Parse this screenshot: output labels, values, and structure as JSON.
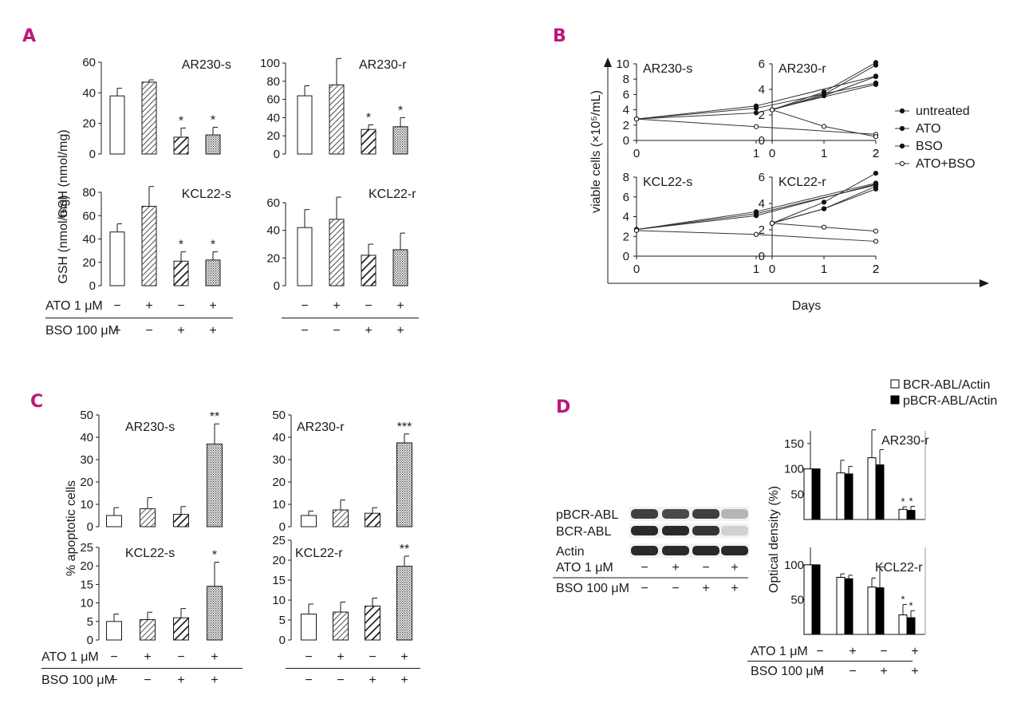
{
  "colors": {
    "accent": "#c0157a",
    "ink": "#1a1a1a"
  },
  "panels": [
    {
      "letter": "A",
      "x": 28,
      "y": 52
    },
    {
      "letter": "B",
      "x": 693,
      "y": 52
    },
    {
      "letter": "C",
      "x": 38,
      "y": 510
    },
    {
      "letter": "D",
      "x": 697,
      "y": 517
    }
  ],
  "treatment_labels": {
    "ato": "ATO 1 μM",
    "bso": "BSO 100 μM"
  },
  "line_xlabel": "Days",
  "chart_data": [
    {
      "id": "A",
      "type": "bar",
      "ylabel": "GSH (nmol/mg)",
      "fills": [
        "white",
        "hatch",
        "hatch-bold",
        "dots"
      ],
      "treatments": {
        "ato": [
          "−",
          "+",
          "−",
          "+"
        ],
        "bso": [
          "−",
          "−",
          "+",
          "+"
        ]
      },
      "subplots": [
        {
          "name": "AR230-s",
          "ylim": [
            0,
            60
          ],
          "yticks": [
            0,
            20,
            40,
            60
          ],
          "values": [
            38,
            47,
            11,
            12.5
          ],
          "errors": [
            5,
            1.5,
            6,
            5
          ],
          "markers": [
            "",
            "",
            "*",
            "*"
          ]
        },
        {
          "name": "AR230-r",
          "ylim": [
            0,
            100
          ],
          "yticks": [
            0,
            20,
            40,
            60,
            80,
            100
          ],
          "values": [
            64,
            76,
            27,
            30
          ],
          "errors": [
            11,
            29,
            5,
            10
          ],
          "markers": [
            "",
            "",
            "*",
            "*"
          ]
        },
        {
          "name": "KCL22-s",
          "ylim": [
            0,
            80
          ],
          "yticks": [
            0,
            20,
            40,
            60,
            80
          ],
          "values": [
            46,
            68,
            21,
            22
          ],
          "errors": [
            7,
            17,
            8,
            7
          ],
          "markers": [
            "",
            "",
            "*",
            "*"
          ]
        },
        {
          "name": "KCL22-r",
          "ylim": [
            0,
            60
          ],
          "yticks": [
            0,
            20,
            40,
            60
          ],
          "values": [
            42,
            48,
            22,
            26
          ],
          "errors": [
            13,
            16,
            8,
            12
          ],
          "markers": [
            "",
            "",
            "",
            ""
          ]
        }
      ]
    },
    {
      "id": "B",
      "type": "line",
      "ylabel": "viable cells (×10⁵/mL)",
      "xlabel": "Days",
      "x": [
        0,
        1,
        2
      ],
      "xticks": [
        0,
        1,
        2
      ],
      "legend": [
        "untreated",
        "ATO",
        "BSO",
        "ATO+BSO"
      ],
      "subplots": [
        {
          "name": "AR230-s",
          "ylim": [
            0,
            10
          ],
          "yticks": [
            0,
            2,
            4,
            6,
            8,
            10
          ],
          "series": [
            {
              "name": "untreated",
              "values": [
                2.8,
                4.5,
                8.4
              ]
            },
            {
              "name": "ATO",
              "values": [
                2.8,
                4.2,
                7.5
              ]
            },
            {
              "name": "BSO",
              "values": [
                2.8,
                3.6,
                7.3
              ]
            },
            {
              "name": "ATO+BSO",
              "values": [
                2.8,
                1.8,
                0.8
              ]
            }
          ]
        },
        {
          "name": "AR230-r",
          "ylim": [
            0,
            6
          ],
          "yticks": [
            0,
            2,
            4,
            6
          ],
          "series": [
            {
              "name": "untreated",
              "values": [
                2.4,
                3.8,
                6.1
              ]
            },
            {
              "name": "ATO",
              "values": [
                2.4,
                3.6,
                5.9
              ]
            },
            {
              "name": "BSO",
              "values": [
                2.4,
                3.5,
                5.0
              ]
            },
            {
              "name": "ATO+BSO",
              "values": [
                2.4,
                1.1,
                0.3
              ]
            }
          ]
        },
        {
          "name": "KCL22-s",
          "ylim": [
            0,
            8
          ],
          "yticks": [
            0,
            2,
            4,
            6,
            8
          ],
          "series": [
            {
              "name": "untreated",
              "values": [
                2.7,
                4.5,
                7.4
              ]
            },
            {
              "name": "ATO",
              "values": [
                2.7,
                4.1,
                7.3
              ]
            },
            {
              "name": "BSO",
              "values": [
                2.7,
                4.3,
                7.2
              ]
            },
            {
              "name": "ATO+BSO",
              "values": [
                2.6,
                2.2,
                1.5
              ]
            }
          ]
        },
        {
          "name": "KCL22-r",
          "ylim": [
            0,
            6
          ],
          "yticks": [
            0,
            2,
            4,
            6
          ],
          "series": [
            {
              "name": "untreated",
              "values": [
                2.5,
                4.1,
                6.3
              ]
            },
            {
              "name": "ATO",
              "values": [
                2.5,
                3.6,
                5.3
              ]
            },
            {
              "name": "BSO",
              "values": [
                2.5,
                3.6,
                5.1
              ]
            },
            {
              "name": "ATO+BSO",
              "values": [
                2.5,
                2.2,
                1.9
              ]
            }
          ]
        }
      ]
    },
    {
      "id": "C",
      "type": "bar",
      "ylabel": "% apoptotic cells",
      "fills": [
        "white",
        "hatch",
        "hatch-bold",
        "dots"
      ],
      "treatments": {
        "ato": [
          "−",
          "+",
          "−",
          "+"
        ],
        "bso": [
          "−",
          "−",
          "+",
          "+"
        ]
      },
      "subplots": [
        {
          "name": "AR230-s",
          "ylim": [
            0,
            50
          ],
          "yticks": [
            0,
            10,
            20,
            30,
            40,
            50
          ],
          "values": [
            5,
            8,
            5.5,
            37
          ],
          "errors": [
            3.5,
            5,
            3.5,
            9
          ],
          "markers": [
            "",
            "",
            "",
            "**"
          ]
        },
        {
          "name": "AR230-r",
          "ylim": [
            0,
            50
          ],
          "yticks": [
            0,
            10,
            20,
            30,
            40,
            50
          ],
          "values": [
            5,
            7.5,
            6,
            37.5
          ],
          "errors": [
            2,
            4.5,
            2.5,
            4
          ],
          "markers": [
            "",
            "",
            "",
            "***"
          ]
        },
        {
          "name": "KCL22-s",
          "ylim": [
            0,
            25
          ],
          "yticks": [
            0,
            5,
            10,
            15,
            20,
            25
          ],
          "values": [
            5,
            5.5,
            6,
            14.5
          ],
          "errors": [
            2,
            2,
            2.5,
            6.5
          ],
          "markers": [
            "",
            "",
            "",
            "*"
          ]
        },
        {
          "name": "KCL22-r",
          "ylim": [
            0,
            25
          ],
          "yticks": [
            0,
            5,
            10,
            15,
            20,
            25
          ],
          "values": [
            6.5,
            7,
            8.5,
            18.5
          ],
          "errors": [
            2.5,
            2.5,
            2,
            2.5
          ],
          "markers": [
            "",
            "",
            "",
            "**"
          ]
        }
      ]
    },
    {
      "id": "D",
      "type": "bar",
      "ylabel": "Optical density (%)",
      "legend": [
        "BCR-ABL/Actin",
        "pBCR-ABL/Actin"
      ],
      "treatments": {
        "ato": [
          "−",
          "+",
          "−",
          "+"
        ],
        "bso": [
          "−",
          "−",
          "+",
          "+"
        ]
      },
      "subplots": [
        {
          "name": "AR230-r",
          "ylim": [
            0,
            175
          ],
          "yticks": [
            50,
            100,
            150
          ],
          "series": [
            {
              "name": "BCR-ABL/Actin",
              "values": [
                100,
                92,
                122,
                20
              ],
              "errors": [
                0,
                25,
                55,
                5
              ],
              "markers": [
                "",
                "",
                "",
                "*"
              ]
            },
            {
              "name": "pBCR-ABL/Actin",
              "values": [
                100,
                90,
                108,
                18
              ],
              "errors": [
                0,
                15,
                30,
                8
              ],
              "markers": [
                "",
                "",
                "",
                "*"
              ]
            }
          ]
        },
        {
          "name": "KCL22-r",
          "ylim": [
            0,
            125
          ],
          "yticks": [
            50,
            100
          ],
          "series": [
            {
              "name": "BCR-ABL/Actin",
              "values": [
                100,
                82,
                68,
                28
              ],
              "errors": [
                0,
                5,
                13,
                15
              ],
              "markers": [
                "",
                "",
                "",
                "*"
              ]
            },
            {
              "name": "pBCR-ABL/Actin",
              "values": [
                100,
                80,
                67,
                24
              ],
              "errors": [
                0,
                5,
                30,
                10
              ],
              "markers": [
                "",
                "",
                "",
                "*"
              ]
            }
          ]
        }
      ],
      "blot": {
        "rows": [
          "pBCR-ABL",
          "BCR-ABL",
          "Actin"
        ],
        "intensity": [
          [
            0.8,
            0.75,
            0.8,
            0.25
          ],
          [
            0.9,
            0.9,
            0.85,
            0.12
          ],
          [
            0.9,
            0.9,
            0.9,
            0.9
          ]
        ],
        "treatments": {
          "ato": [
            "−",
            "+",
            "−",
            "+"
          ],
          "bso": [
            "−",
            "−",
            "+",
            "+"
          ]
        }
      }
    }
  ]
}
